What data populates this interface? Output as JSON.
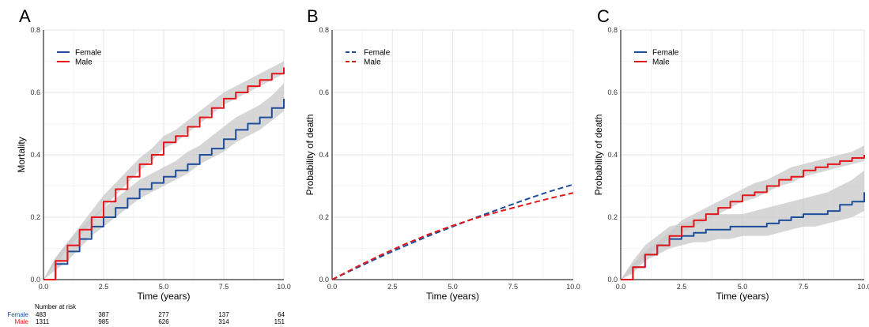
{
  "chart_data": [
    {
      "panel": "A",
      "type": "line",
      "xlabel": "Time (years)",
      "ylabel": "Mortality",
      "xlim": [
        0,
        10
      ],
      "ylim": [
        0,
        0.8
      ],
      "xticks": [
        "0.0",
        "2.5",
        "5.0",
        "7.5",
        "10.0"
      ],
      "yticks": [
        "0.0",
        "0.2",
        "0.4",
        "0.6",
        "0.8"
      ],
      "grid": true,
      "legend": "top-left",
      "series": [
        {
          "name": "Female",
          "color": "#1f4e99",
          "dash": false,
          "band": true,
          "x": [
            0,
            0.5,
            1,
            1.5,
            2,
            2.5,
            3,
            3.5,
            4,
            4.5,
            5,
            5.5,
            6,
            6.5,
            7,
            7.5,
            8,
            8.5,
            9,
            9.5,
            10
          ],
          "y": [
            0,
            0.05,
            0.09,
            0.13,
            0.17,
            0.2,
            0.23,
            0.26,
            0.29,
            0.31,
            0.33,
            0.35,
            0.37,
            0.4,
            0.42,
            0.45,
            0.48,
            0.5,
            0.52,
            0.55,
            0.58
          ],
          "lower": [
            0,
            0.03,
            0.06,
            0.1,
            0.14,
            0.17,
            0.2,
            0.23,
            0.26,
            0.28,
            0.3,
            0.32,
            0.34,
            0.37,
            0.39,
            0.41,
            0.44,
            0.46,
            0.48,
            0.51,
            0.54
          ],
          "upper": [
            0,
            0.07,
            0.12,
            0.16,
            0.2,
            0.23,
            0.26,
            0.29,
            0.32,
            0.34,
            0.36,
            0.38,
            0.41,
            0.43,
            0.46,
            0.49,
            0.52,
            0.54,
            0.56,
            0.59,
            0.63
          ]
        },
        {
          "name": "Male",
          "color": "#e3171b",
          "dash": false,
          "band": true,
          "x": [
            0,
            0.5,
            1,
            1.5,
            2,
            2.5,
            3,
            3.5,
            4,
            4.5,
            5,
            5.5,
            6,
            6.5,
            7,
            7.5,
            8,
            8.5,
            9,
            9.5,
            10
          ],
          "y": [
            0,
            0.06,
            0.11,
            0.16,
            0.2,
            0.25,
            0.29,
            0.33,
            0.37,
            0.4,
            0.44,
            0.46,
            0.49,
            0.52,
            0.55,
            0.58,
            0.6,
            0.62,
            0.64,
            0.66,
            0.68
          ],
          "lower": [
            0,
            0.05,
            0.1,
            0.14,
            0.18,
            0.23,
            0.27,
            0.31,
            0.35,
            0.38,
            0.42,
            0.44,
            0.47,
            0.5,
            0.53,
            0.56,
            0.58,
            0.6,
            0.62,
            0.64,
            0.66
          ],
          "upper": [
            0,
            0.07,
            0.12,
            0.17,
            0.22,
            0.27,
            0.31,
            0.35,
            0.39,
            0.42,
            0.46,
            0.48,
            0.51,
            0.54,
            0.57,
            0.6,
            0.62,
            0.64,
            0.66,
            0.68,
            0.7
          ]
        }
      ],
      "risk_table": {
        "title": "Number at risk",
        "rows": [
          {
            "name": "Female",
            "color": "#1f4e99",
            "values": [
              "483",
              "387",
              "277",
              "137",
              "64"
            ]
          },
          {
            "name": "Male",
            "color": "#e3171b",
            "values": [
              "1311",
              "985",
              "626",
              "314",
              "151"
            ]
          }
        ]
      }
    },
    {
      "panel": "B",
      "type": "line",
      "xlabel": "Time (years)",
      "ylabel": "Probability of death",
      "xlim": [
        0,
        10
      ],
      "ylim": [
        0,
        0.8
      ],
      "xticks": [
        "0.0",
        "2.5",
        "5.0",
        "7.5",
        "10.0"
      ],
      "yticks": [
        "0.0",
        "0.2",
        "0.4",
        "0.6",
        "0.8"
      ],
      "grid": true,
      "legend": "top-left",
      "series": [
        {
          "name": "Female",
          "color": "#1f4e99",
          "dash": true,
          "band": false,
          "x": [
            0,
            1,
            2,
            3,
            4,
            5,
            6,
            7,
            8,
            9,
            10
          ],
          "y": [
            0,
            0.037,
            0.073,
            0.107,
            0.14,
            0.17,
            0.2,
            0.228,
            0.256,
            0.282,
            0.305
          ]
        },
        {
          "name": "Male",
          "color": "#e3171b",
          "dash": true,
          "band": false,
          "x": [
            0,
            1,
            2,
            3,
            4,
            5,
            6,
            7,
            8,
            9,
            10
          ],
          "y": [
            0,
            0.04,
            0.078,
            0.113,
            0.145,
            0.173,
            0.198,
            0.22,
            0.24,
            0.26,
            0.278
          ]
        }
      ]
    },
    {
      "panel": "C",
      "type": "line",
      "xlabel": "Time (years)",
      "ylabel": "Probability of death",
      "xlim": [
        0,
        10
      ],
      "ylim": [
        0,
        0.8
      ],
      "xticks": [
        "0.0",
        "2.5",
        "5.0",
        "7.5",
        "10.0"
      ],
      "yticks": [
        "0.0",
        "0.2",
        "0.4",
        "0.6",
        "0.8"
      ],
      "grid": true,
      "legend": "top-left",
      "series": [
        {
          "name": "Female",
          "color": "#1f4e99",
          "dash": false,
          "band": true,
          "x": [
            0,
            0.5,
            1,
            1.5,
            2,
            2.5,
            3,
            3.5,
            4,
            4.5,
            5,
            5.5,
            6,
            6.5,
            7,
            7.5,
            8,
            8.5,
            9,
            9.5,
            10
          ],
          "y": [
            0,
            0.04,
            0.08,
            0.11,
            0.13,
            0.14,
            0.15,
            0.16,
            0.16,
            0.17,
            0.17,
            0.17,
            0.18,
            0.19,
            0.2,
            0.21,
            0.21,
            0.22,
            0.24,
            0.25,
            0.28
          ],
          "lower": [
            0,
            0.02,
            0.06,
            0.08,
            0.1,
            0.11,
            0.12,
            0.12,
            0.13,
            0.13,
            0.14,
            0.14,
            0.14,
            0.15,
            0.16,
            0.17,
            0.17,
            0.18,
            0.19,
            0.2,
            0.22
          ],
          "upper": [
            0,
            0.06,
            0.11,
            0.14,
            0.17,
            0.18,
            0.19,
            0.2,
            0.21,
            0.21,
            0.21,
            0.22,
            0.23,
            0.24,
            0.25,
            0.26,
            0.27,
            0.28,
            0.3,
            0.32,
            0.35
          ]
        },
        {
          "name": "Male",
          "color": "#e3171b",
          "dash": false,
          "band": true,
          "x": [
            0,
            0.5,
            1,
            1.5,
            2,
            2.5,
            3,
            3.5,
            4,
            4.5,
            5,
            5.5,
            6,
            6.5,
            7,
            7.5,
            8,
            8.5,
            9,
            9.5,
            10
          ],
          "y": [
            0,
            0.04,
            0.08,
            0.11,
            0.14,
            0.17,
            0.19,
            0.21,
            0.23,
            0.25,
            0.27,
            0.28,
            0.3,
            0.32,
            0.33,
            0.35,
            0.36,
            0.37,
            0.38,
            0.39,
            0.4
          ],
          "lower": [
            0,
            0.03,
            0.07,
            0.1,
            0.13,
            0.15,
            0.17,
            0.19,
            0.21,
            0.23,
            0.25,
            0.26,
            0.28,
            0.3,
            0.31,
            0.33,
            0.34,
            0.35,
            0.36,
            0.37,
            0.38
          ],
          "upper": [
            0,
            0.05,
            0.09,
            0.12,
            0.15,
            0.19,
            0.21,
            0.23,
            0.25,
            0.27,
            0.29,
            0.31,
            0.32,
            0.34,
            0.36,
            0.37,
            0.38,
            0.39,
            0.4,
            0.41,
            0.43
          ]
        }
      ]
    }
  ],
  "band_color": "#c8c8c8",
  "grid_color": "#e5e5e5"
}
